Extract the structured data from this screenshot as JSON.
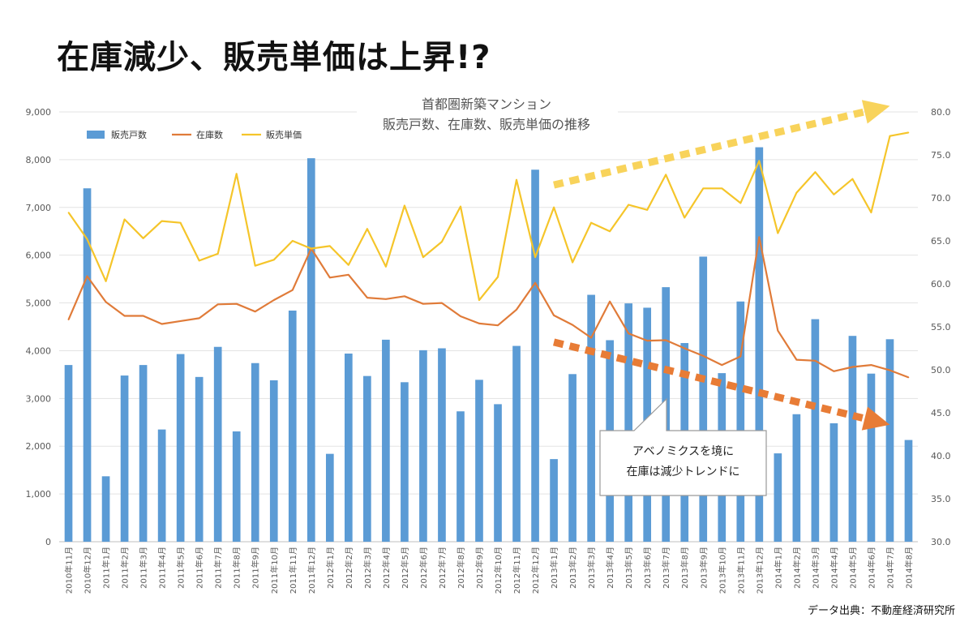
{
  "headline": "在庫減少、販売単価は上昇!?",
  "source_note": "データ出典：不動産経済研究所",
  "chart_data": {
    "type": "bar",
    "title_lines": [
      "首都圏新築マンション",
      "販売戸数、在庫数、販売単価の推移"
    ],
    "categories": [
      "2010年11月",
      "2010年12月",
      "2011年1月",
      "2011年2月",
      "2011年3月",
      "2011年4月",
      "2011年5月",
      "2011年6月",
      "2011年7月",
      "2011年8月",
      "2011年9月",
      "2011年10月",
      "2011年11月",
      "2011年12月",
      "2012年1月",
      "2012年2月",
      "2012年3月",
      "2012年4月",
      "2012年5月",
      "2012年6月",
      "2012年7月",
      "2012年8月",
      "2012年9月",
      "2012年10月",
      "2012年11月",
      "2012年12月",
      "2013年1月",
      "2013年2月",
      "2013年3月",
      "2013年4月",
      "2013年5月",
      "2013年6月",
      "2013年7月",
      "2013年8月",
      "2013年9月",
      "2013年10月",
      "2013年11月",
      "2013年12月",
      "2014年1月",
      "2014年2月",
      "2014年3月",
      "2014年4月",
      "2014年5月",
      "2014年6月",
      "2014年7月",
      "2014年8月"
    ],
    "series": [
      {
        "name": "販売戸数",
        "type": "bar",
        "axis": "left",
        "color": "#5b9bd5",
        "values": [
          3700,
          7400,
          1370,
          3480,
          3700,
          2350,
          3930,
          3450,
          4080,
          2310,
          3740,
          3380,
          4840,
          8030,
          1840,
          3940,
          3470,
          4230,
          3340,
          4010,
          4050,
          2730,
          3390,
          2880,
          4100,
          7790,
          1730,
          3510,
          5170,
          4220,
          4990,
          4900,
          5330,
          4160,
          5970,
          3530,
          5030,
          8260,
          1850,
          2670,
          4660,
          2480,
          4310,
          3520,
          4240,
          2130
        ]
      },
      {
        "name": "在庫数",
        "type": "line",
        "axis": "left",
        "color": "#e07b39",
        "values": [
          4650,
          5560,
          5020,
          4730,
          4730,
          4560,
          4620,
          4680,
          4970,
          4980,
          4820,
          5060,
          5270,
          6140,
          5530,
          5590,
          5110,
          5080,
          5140,
          4980,
          5000,
          4720,
          4570,
          4530,
          4860,
          5420,
          4740,
          4540,
          4270,
          5030,
          4360,
          4210,
          4220,
          4050,
          3890,
          3700,
          3880,
          6380,
          4420,
          3810,
          3790,
          3570,
          3660,
          3700,
          3590,
          3440
        ]
      },
      {
        "name": "販売単価",
        "type": "line",
        "axis": "right",
        "color": "#f5c52a",
        "values": [
          68.3,
          65.2,
          60.3,
          67.5,
          65.3,
          67.3,
          67.1,
          62.7,
          63.5,
          72.8,
          62.1,
          62.8,
          65.0,
          64.1,
          64.4,
          62.2,
          66.4,
          62.0,
          69.1,
          63.1,
          64.9,
          69.0,
          58.1,
          60.8,
          72.1,
          63.1,
          68.9,
          62.5,
          67.1,
          66.1,
          69.2,
          68.6,
          72.7,
          67.7,
          71.1,
          71.1,
          69.4,
          74.3,
          65.9,
          70.6,
          73.0,
          70.4,
          72.2,
          68.3,
          77.2,
          77.6
        ]
      }
    ],
    "y_left": {
      "min": 0,
      "max": 9000,
      "step": 1000,
      "ticks": [
        "0",
        "1,000",
        "2,000",
        "3,000",
        "4,000",
        "5,000",
        "6,000",
        "7,000",
        "8,000",
        "9,000"
      ]
    },
    "y_right": {
      "min": 30,
      "max": 80,
      "step": 5,
      "ticks": [
        "30.0",
        "35.0",
        "40.0",
        "45.0",
        "50.0",
        "55.0",
        "60.0",
        "65.0",
        "70.0",
        "75.0",
        "80.0"
      ]
    },
    "legend_position": "top-left",
    "annotation_lines": [
      "アベノミクスを境に",
      "在庫は減少トレンドに"
    ],
    "trend_arrows": [
      {
        "name": "price-trend",
        "color": "#f8d35b",
        "from": {
          "x_index": 26,
          "y_right": 71.5
        },
        "to": {
          "x_index": 44,
          "y_right": 80.7
        }
      },
      {
        "name": "inventory-trend",
        "color": "#e87c36",
        "from": {
          "x_index": 26,
          "y_left": 4180
        },
        "to": {
          "x_index": 44,
          "y_left": 2450
        }
      }
    ]
  }
}
